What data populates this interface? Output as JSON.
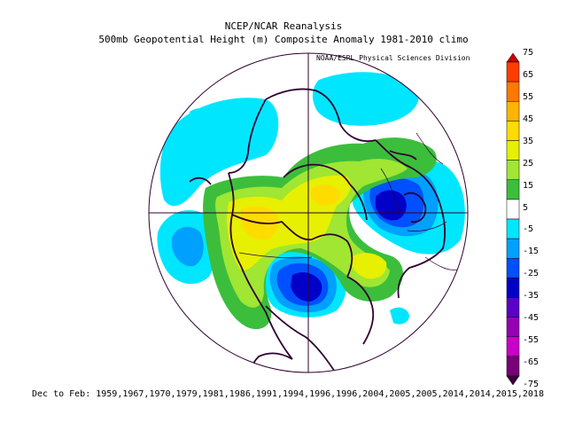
{
  "header": {
    "title": "NCEP/NCAR Reanalysis",
    "subtitle": "500mb Geopotential Height (m) Composite Anomaly 1981-2010 climo",
    "credit": "NOAA/ESRL Physical Sciences Division"
  },
  "footer": {
    "text": "Dec to Feb: 1959,1967,1970,1979,1981,1986,1991,1994,1996,1996,2004,2005,2005,2014,2014,2015,2018"
  },
  "colorbar": {
    "labels": [
      "75",
      "65",
      "55",
      "45",
      "35",
      "25",
      "15",
      "5",
      "-5",
      "-15",
      "-25",
      "-35",
      "-45",
      "-55",
      "-65",
      "-75"
    ],
    "colors": [
      "#c80000",
      "#ff3c00",
      "#ff7800",
      "#ffb400",
      "#ffdc00",
      "#e6f000",
      "#a0e632",
      "#3cbe3c",
      "#ffffff",
      "#00e6ff",
      "#00a0ff",
      "#0050ff",
      "#0000c8",
      "#5a00c8",
      "#9600b4",
      "#c800c8",
      "#780078",
      "#3c003c"
    ]
  },
  "map": {
    "projection": "north-polar-stereographic",
    "anomaly_colors": {
      "pos_15": "#a0e632",
      "pos_5": "#3cbe3c",
      "pos_25": "#e6f000",
      "pos_35": "#ffdc00",
      "neg_5": "#00e6ff",
      "neg_15": "#00a0ff",
      "neg_25": "#0050ff",
      "neg_35": "#0000c8",
      "coast": "#300030"
    }
  }
}
